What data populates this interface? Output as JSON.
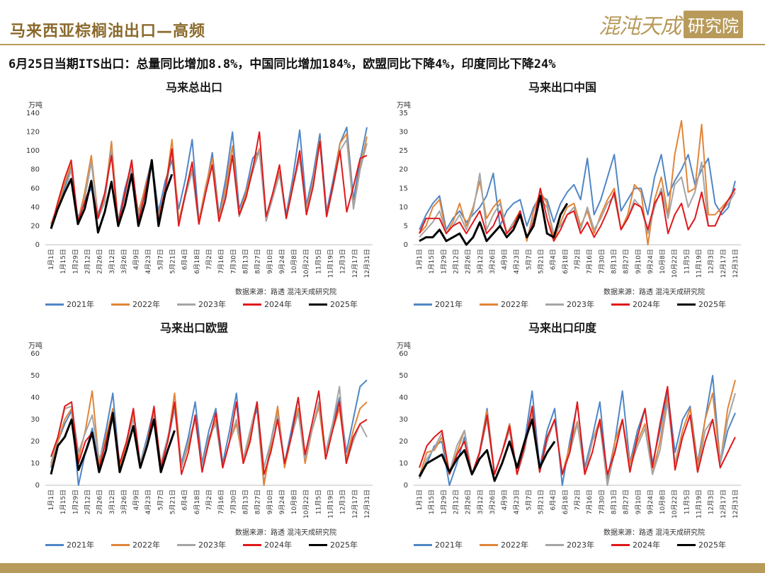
{
  "header": {
    "title": "马来西亚棕榈油出口—高频",
    "logo_main": "混沌天成",
    "logo_box": "研究院"
  },
  "subtitle": "6月25日当期ITS出口：总量同比增加8.8%，中国同比增加184%，欧盟同比下降4%，印度同比下降24%",
  "colors": {
    "accent": "#b89a5a",
    "title": "#8a6a2c"
  },
  "shared": {
    "unit": "万吨",
    "source": "数据来源：路透  混沌天成研究院",
    "x_labels": [
      "1月1日",
      "1月15日",
      "1月29日",
      "2月12日",
      "2月26日",
      "3月12日",
      "3月26日",
      "4月9日",
      "4月23日",
      "5月7日",
      "5月21日",
      "6月4日",
      "6月18日",
      "7月2日",
      "7月16日",
      "7月30日",
      "8月13日",
      "8月27日",
      "9月10日",
      "9月24日",
      "10月8日",
      "10月22日",
      "11月5日",
      "11月19日",
      "12月3日",
      "12月17日",
      "12月31日"
    ],
    "series_names": [
      "2021年",
      "2022年",
      "2023年",
      "2024年",
      "2025年"
    ],
    "series_colors": [
      "#4f86c6",
      "#e0853a",
      "#a5a5a5",
      "#e0181b",
      "#000000"
    ]
  },
  "chart_data": [
    {
      "type": "line",
      "title": "马来总出口",
      "ylabel": "万吨",
      "ylim": [
        0,
        140
      ],
      "yticks": [
        0,
        20,
        40,
        60,
        80,
        100,
        120,
        140
      ],
      "series": [
        {
          "name": "2021年",
          "values": [
            22,
            42,
            60,
            82,
            28,
            48,
            60,
            32,
            55,
            100,
            25,
            60,
            85,
            30,
            62,
            90,
            35,
            68,
            90,
            38,
            70,
            112,
            25,
            58,
            98,
            32,
            70,
            120,
            38,
            58,
            92,
            100,
            30,
            52,
            78,
            32,
            72,
            122,
            42,
            75,
            118,
            35,
            70,
            108,
            125,
            48,
            90,
            125
          ]
        },
        {
          "name": "2022年",
          "values": [
            22,
            40,
            65,
            85,
            25,
            55,
            95,
            30,
            50,
            110,
            22,
            55,
            80,
            35,
            60,
            88,
            30,
            58,
            112,
            25,
            55,
            80,
            25,
            62,
            92,
            28,
            62,
            105,
            32,
            55,
            82,
            102,
            28,
            55,
            78,
            28,
            65,
            95,
            38,
            68,
            112,
            30,
            65,
            108,
            118,
            40,
            82,
            115
          ]
        },
        {
          "name": "2023年",
          "values": [
            20,
            38,
            55,
            80,
            25,
            48,
            88,
            28,
            45,
            102,
            20,
            50,
            82,
            32,
            55,
            85,
            28,
            55,
            100,
            22,
            52,
            78,
            22,
            58,
            85,
            25,
            55,
            95,
            30,
            50,
            78,
            100,
            25,
            50,
            75,
            28,
            62,
            92,
            35,
            65,
            110,
            30,
            62,
            100,
            112,
            38,
            80,
            108
          ]
        },
        {
          "name": "2024年",
          "values": [
            18,
            45,
            70,
            90,
            25,
            45,
            65,
            28,
            55,
            95,
            22,
            55,
            90,
            25,
            55,
            90,
            25,
            60,
            102,
            20,
            55,
            88,
            22,
            55,
            85,
            25,
            50,
            95,
            32,
            50,
            80,
            120,
            30,
            55,
            85,
            28,
            62,
            100,
            32,
            62,
            110,
            30,
            65,
            100,
            35,
            62,
            92,
            95
          ]
        },
        {
          "name": "2025年",
          "values": [
            17,
            38,
            55,
            70,
            22,
            38,
            68,
            13,
            35,
            67,
            20,
            42,
            75,
            20,
            45,
            90,
            20,
            55,
            75
          ]
        }
      ]
    },
    {
      "type": "line",
      "title": "马来出口中国",
      "ylabel": "万吨",
      "ylim": [
        0,
        35
      ],
      "yticks": [
        0,
        5,
        10,
        15,
        20,
        25,
        30,
        35
      ],
      "series": [
        {
          "name": "2021年",
          "values": [
            4,
            8,
            11,
            13,
            4,
            7,
            9,
            6,
            8,
            10,
            13,
            19,
            5,
            9,
            11,
            12,
            5,
            10,
            13,
            12,
            6,
            11,
            14,
            16,
            12,
            23,
            8,
            12,
            18,
            24,
            9,
            12,
            15,
            15,
            8,
            18,
            24,
            13,
            17,
            20,
            24,
            16,
            20,
            23,
            11,
            8,
            10,
            17
          ]
        },
        {
          "name": "2022年",
          "values": [
            3,
            5,
            10,
            12,
            3,
            6,
            11,
            5,
            10,
            17,
            7,
            10,
            12,
            3,
            6,
            9,
            1,
            9,
            14,
            11,
            1,
            6,
            10,
            11,
            5,
            9,
            3,
            8,
            12,
            15,
            4,
            8,
            16,
            14,
            0,
            12,
            18,
            8,
            24,
            33,
            14,
            15,
            32,
            8,
            8,
            10,
            12,
            15
          ]
        },
        {
          "name": "2023年",
          "values": [
            2,
            4,
            6,
            9,
            3,
            5,
            8,
            4,
            9,
            19,
            4,
            8,
            11,
            3,
            6,
            8,
            2,
            7,
            12,
            10,
            3,
            5,
            8,
            10,
            4,
            10,
            4,
            7,
            11,
            13,
            4,
            7,
            12,
            10,
            3,
            10,
            15,
            7,
            16,
            18,
            10,
            14,
            22,
            5,
            5,
            9,
            11,
            14
          ]
        },
        {
          "name": "2024年",
          "values": [
            3,
            7,
            7,
            7,
            3,
            5,
            6,
            3,
            6,
            9,
            3,
            5,
            9,
            3,
            5,
            9,
            2,
            6,
            15,
            7,
            1,
            4,
            8,
            9,
            3,
            6,
            2,
            5,
            9,
            14,
            4,
            7,
            11,
            10,
            4,
            11,
            14,
            3,
            8,
            11,
            4,
            7,
            14,
            5,
            5,
            9,
            12,
            15
          ]
        },
        {
          "name": "2025年",
          "values": [
            1,
            2,
            2,
            4,
            1,
            2,
            3,
            0,
            2,
            6,
            1,
            3,
            5,
            2,
            4,
            8,
            2,
            5,
            13,
            3,
            2,
            8,
            11
          ]
        }
      ]
    },
    {
      "type": "line",
      "title": "马来出口欧盟",
      "ylabel": "万吨",
      "ylim": [
        0,
        60
      ],
      "yticks": [
        0,
        10,
        20,
        30,
        40,
        50,
        60
      ],
      "series": [
        {
          "name": "2021年",
          "values": [
            8,
            20,
            28,
            34,
            0,
            15,
            26,
            10,
            25,
            42,
            8,
            20,
            34,
            10,
            22,
            35,
            8,
            20,
            35,
            10,
            22,
            38,
            10,
            25,
            35,
            10,
            25,
            42,
            10,
            25,
            35,
            0,
            20,
            35,
            10,
            25,
            40,
            12,
            25,
            36,
            15,
            28,
            40,
            15,
            30,
            45,
            48
          ]
        },
        {
          "name": "2022年",
          "values": [
            9,
            20,
            30,
            35,
            12,
            25,
            43,
            10,
            22,
            35,
            8,
            18,
            33,
            10,
            20,
            34,
            8,
            20,
            42,
            8,
            18,
            30,
            8,
            20,
            30,
            8,
            20,
            28,
            10,
            22,
            38,
            0,
            18,
            36,
            8,
            22,
            35,
            10,
            25,
            36,
            12,
            25,
            35,
            12,
            25,
            35,
            38
          ]
        },
        {
          "name": "2023年",
          "values": [
            10,
            22,
            35,
            36,
            15,
            24,
            32,
            12,
            20,
            30,
            10,
            20,
            30,
            10,
            20,
            32,
            10,
            22,
            35,
            8,
            20,
            30,
            8,
            22,
            28,
            8,
            20,
            30,
            12,
            25,
            38,
            8,
            20,
            32,
            10,
            22,
            33,
            12,
            25,
            38,
            15,
            28,
            45,
            10,
            20,
            28,
            22
          ]
        },
        {
          "name": "2024年",
          "values": [
            13,
            22,
            36,
            38,
            10,
            20,
            24,
            8,
            20,
            33,
            10,
            20,
            35,
            8,
            18,
            36,
            8,
            20,
            38,
            5,
            15,
            32,
            6,
            20,
            33,
            8,
            20,
            38,
            10,
            20,
            38,
            5,
            15,
            30,
            10,
            22,
            40,
            14,
            28,
            43,
            12,
            25,
            38,
            10,
            22,
            28,
            30
          ]
        },
        {
          "name": "2025年",
          "values": [
            5,
            18,
            22,
            30,
            7,
            15,
            24,
            6,
            16,
            33,
            6,
            16,
            27,
            8,
            18,
            30,
            6,
            16,
            25
          ]
        }
      ]
    },
    {
      "type": "line",
      "title": "马来出口印度",
      "ylabel": "万吨",
      "ylim": [
        0,
        60
      ],
      "yticks": [
        0,
        10,
        20,
        30,
        40,
        50,
        60
      ],
      "series": [
        {
          "name": "2021年",
          "values": [
            3,
            10,
            18,
            20,
            0,
            10,
            22,
            5,
            15,
            35,
            5,
            15,
            28,
            5,
            20,
            43,
            8,
            25,
            35,
            0,
            20,
            37,
            8,
            22,
            38,
            3,
            20,
            43,
            10,
            25,
            35,
            10,
            25,
            43,
            15,
            30,
            36,
            10,
            30,
            50,
            10,
            25,
            33
          ]
        },
        {
          "name": "2022年",
          "values": [
            4,
            15,
            16,
            22,
            5,
            15,
            25,
            5,
            15,
            34,
            5,
            15,
            28,
            5,
            18,
            33,
            6,
            22,
            30,
            5,
            18,
            29,
            5,
            20,
            30,
            0,
            20,
            30,
            10,
            20,
            28,
            5,
            20,
            40,
            10,
            25,
            35,
            8,
            30,
            42,
            10,
            35,
            48
          ]
        },
        {
          "name": "2023年",
          "values": [
            3,
            12,
            17,
            24,
            6,
            18,
            25,
            5,
            14,
            30,
            5,
            15,
            25,
            5,
            16,
            35,
            6,
            20,
            30,
            5,
            15,
            28,
            6,
            20,
            28,
            0,
            16,
            30,
            8,
            18,
            26,
            5,
            16,
            38,
            10,
            22,
            32,
            6,
            25,
            30,
            10,
            30,
            42
          ]
        },
        {
          "name": "2024年",
          "values": [
            8,
            18,
            22,
            25,
            5,
            14,
            20,
            5,
            15,
            32,
            5,
            15,
            27,
            5,
            18,
            36,
            6,
            22,
            30,
            5,
            15,
            38,
            5,
            15,
            30,
            5,
            15,
            30,
            6,
            22,
            35,
            8,
            28,
            45,
            7,
            22,
            32,
            6,
            20,
            30,
            8,
            15,
            22
          ]
        },
        {
          "name": "2025年",
          "values": [
            4,
            10,
            12,
            14,
            6,
            12,
            16,
            5,
            12,
            16,
            2,
            10,
            20,
            8,
            20,
            30,
            8,
            15,
            20
          ]
        }
      ]
    }
  ]
}
